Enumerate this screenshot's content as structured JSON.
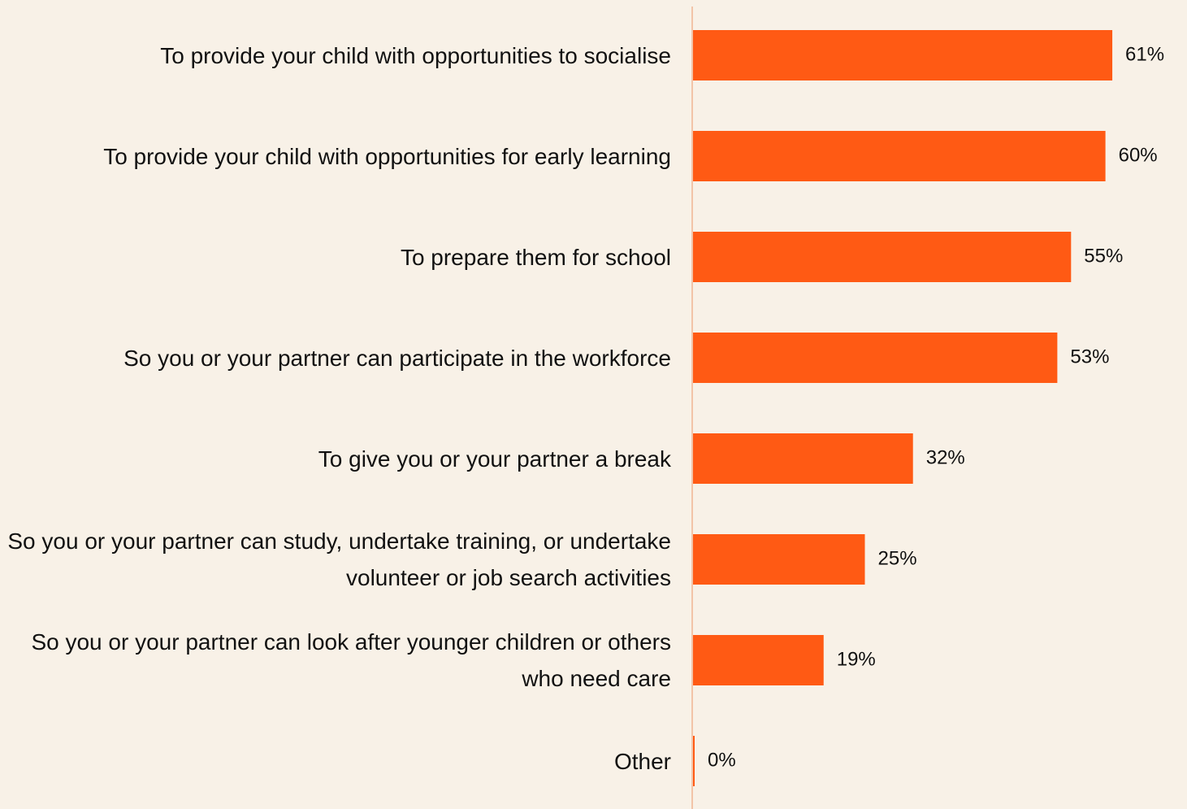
{
  "chart_data": {
    "type": "barh",
    "categories": [
      "To provide your child with opportunities to socialise",
      "To provide your child with opportunities for early learning",
      "To prepare them for school",
      "So you or your partner can participate in the workforce",
      "To give you or your partner a break",
      "So you or your partner can study, undertake training, or undertake volunteer or job search activities",
      "So you or your partner can look after younger children or others who need care",
      "Other"
    ],
    "values": [
      61,
      60,
      55,
      53,
      32,
      25,
      19,
      0
    ],
    "value_labels": [
      "61%",
      "60%",
      "55%",
      "53%",
      "32%",
      "25%",
      "19%",
      "0%"
    ],
    "color": "#ff5a14"
  }
}
